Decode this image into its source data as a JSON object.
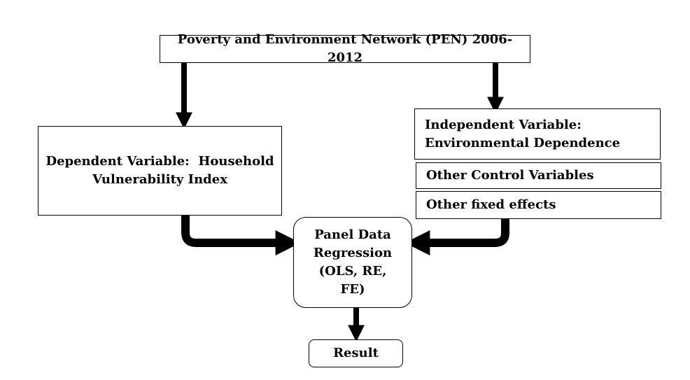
{
  "diagram": {
    "source": "Poverty and Environment Network (PEN) 2006-2012",
    "dependent": {
      "line1": "Dependent Variable:  Household",
      "line2": "Vulnerability Index"
    },
    "independent": {
      "line1": "Independent Variable:",
      "line2": "Environmental Dependence"
    },
    "control": "Other Control Variables",
    "fixed_effects": "Other fixed effects",
    "regression": {
      "line1": "Panel Data",
      "line2": "Regression",
      "line3": "(OLS, RE,",
      "line4": "FE)"
    },
    "result": "Result"
  },
  "colors": {
    "stroke": "#000000",
    "fill": "#ffffff"
  }
}
